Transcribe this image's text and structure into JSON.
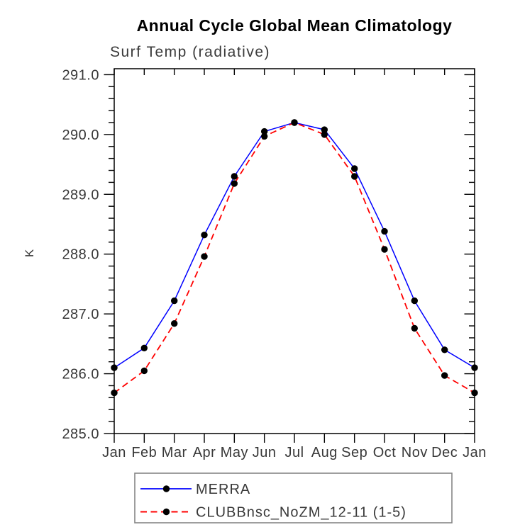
{
  "window": {
    "background_color": "#ffffff"
  },
  "chart_data": {
    "type": "line",
    "title": "Annual Cycle Global Mean Climatology",
    "subtitle": "Surf Temp (radiative)",
    "xlabel": "",
    "ylabel": "K",
    "categories": [
      "Jan",
      "Feb",
      "Mar",
      "Apr",
      "May",
      "Jun",
      "Jul",
      "Aug",
      "Sep",
      "Oct",
      "Nov",
      "Dec",
      "Jan"
    ],
    "ylim": [
      285.0,
      291.1
    ],
    "yticks": [
      285.0,
      286.0,
      287.0,
      288.0,
      289.0,
      290.0,
      291.0
    ],
    "ytick_labels": [
      "285.0",
      "286.0",
      "287.0",
      "288.0",
      "289.0",
      "290.0",
      "291.0"
    ],
    "y_minor_tick_interval": 0.2,
    "grid": false,
    "legend_position": "bottom",
    "frame_color": "#000000",
    "marker_color": "#000000",
    "series": [
      {
        "name": "MERRA",
        "color": "#0000ff",
        "line_style": "solid",
        "marker": "circle",
        "values": [
          286.1,
          286.43,
          287.22,
          288.32,
          289.3,
          290.05,
          290.2,
          290.08,
          289.43,
          288.38,
          287.22,
          286.4,
          286.1
        ]
      },
      {
        "name": "CLUBBnsc_NoZM_12-11 (1-5)",
        "color": "#ff0000",
        "line_style": "dashed",
        "marker": "circle",
        "values": [
          285.68,
          286.05,
          286.84,
          287.96,
          289.18,
          289.97,
          290.2,
          290.0,
          289.3,
          288.08,
          286.76,
          285.97,
          285.68
        ]
      }
    ]
  }
}
